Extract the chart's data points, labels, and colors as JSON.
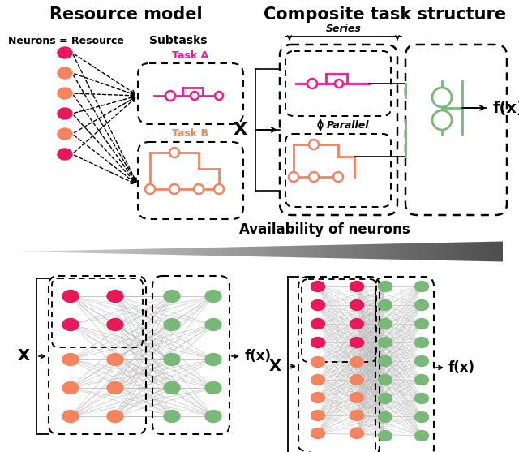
{
  "bg_color": "#ffffff",
  "pink_color": "#FF1493",
  "orange_color": "#F4845F",
  "green_color": "#7AB87A",
  "dark_pink": "#E8185A",
  "section1_title": "Resource model",
  "section2_title": "Composite task structure",
  "neuron_label": "Neurons = Resource",
  "subtask_label": "Subtasks",
  "task_a_label": "Task A",
  "task_b_label": "Task B",
  "series_label": "Series",
  "parallel_label": "Parallel",
  "availability_label": "Availability of neurons"
}
